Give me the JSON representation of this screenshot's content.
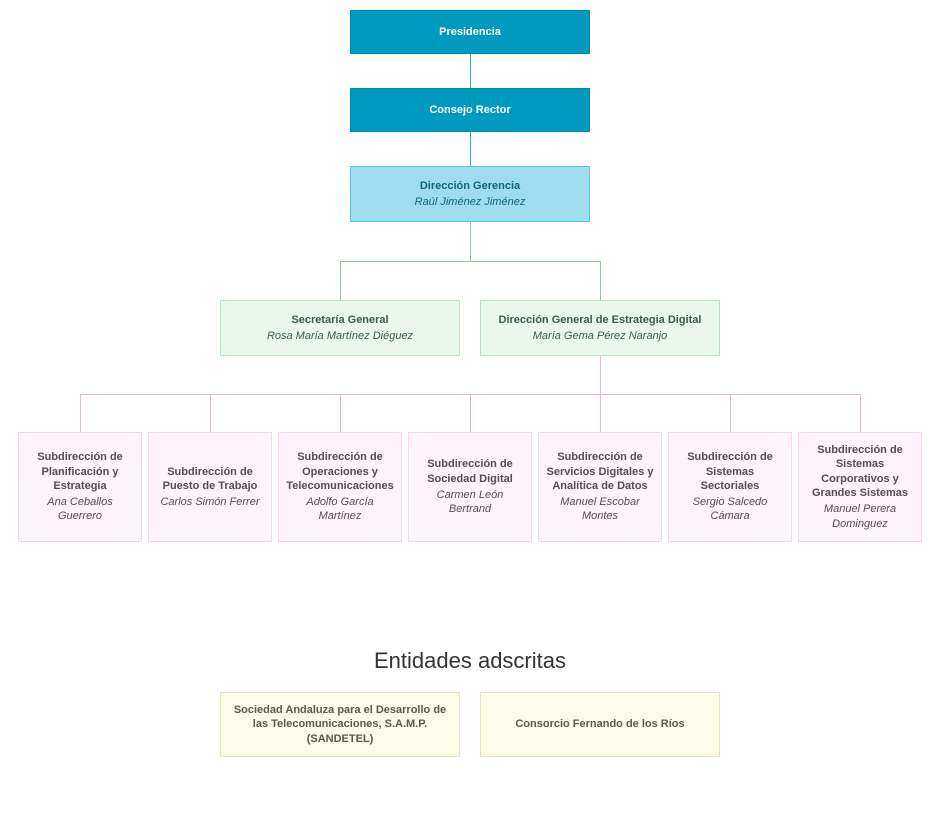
{
  "layout": {
    "topRowY": 10,
    "topNodeW": 240,
    "topNodeH": 44,
    "topNodeX": 350,
    "vGapTop": 34,
    "level3H": 56,
    "midRowY": 300,
    "midNodeW": 240,
    "midNodeH": 56,
    "midLeftX": 220,
    "midRightX": 480,
    "subRowY": 432,
    "subNodeW": 124,
    "subNodeH": 110,
    "subStartX": 18,
    "subGap": 130,
    "entidadesTop": 648
  },
  "colors": {
    "level1_bg": "#009ac1",
    "level1_border": "#0089ab",
    "level1_text": "#ffffff",
    "level3_bg": "#9fdcef",
    "level3_border": "#54c5e6",
    "level3_text": "#106480",
    "level4_bg": "#e9f7ec",
    "level4_border": "#b8e6c4",
    "level4_text": "#3a6045",
    "level5_bg": "#fcf4fa",
    "level5_border": "#f3d8ec",
    "level5_text": "#5a4a55",
    "conn_teal": "#2aa9c9",
    "conn_green": "#8fc9a0",
    "conn_pink": "#e9b6da",
    "entidad_bg": "#fbfbe7",
    "entidad_border": "#e6e6b8",
    "entidad_text": "#5a5a45",
    "heading_text": "#333333"
  },
  "nodes": {
    "presidencia": {
      "title": "Presidencia",
      "person": ""
    },
    "consejo": {
      "title": "Consejo Rector",
      "person": ""
    },
    "direccion_gerencia": {
      "title": "Dirección Gerencia",
      "person": "Raúl Jiménez Jiménez"
    },
    "secretaria_general": {
      "title": "Secretaría General",
      "person": "Rosa María Martínez Diéguez"
    },
    "dg_estrategia": {
      "title": "Dirección General de Estrategia Digital",
      "person": "María Gema Pérez Naranjo"
    }
  },
  "subdirecciones": [
    {
      "title": "Subdirección de Planificación y Estrategia",
      "person": "Ana Ceballos Guerrero"
    },
    {
      "title": "Subdirección de Puesto de Trabajo",
      "person": "Carlos Simón Ferrer"
    },
    {
      "title": "Subdirección de Operaciones y Telecomunicaciones",
      "person": "Adolfo García Martínez"
    },
    {
      "title": "Subdirección de Sociedad Digital",
      "person": "Carmen León Bertrand"
    },
    {
      "title": "Subdirección de Servicios Digitales y Analítica de Datos",
      "person": "Manuel Escobar Montes"
    },
    {
      "title": "Subdirección de Sistemas Sectoriales",
      "person": "Sergio Salcedo Cámara"
    },
    {
      "title": "Subdirección de Sistemas Corporativos y Grandes Sistemas",
      "person": "Manuel Perera Dominguez"
    }
  ],
  "entidades": {
    "heading": "Entidades adscritas",
    "items": [
      "Sociedad Andaluza para el Desarrollo de las Telecomunicaciones, S.A.M.P. (SANDETEL)",
      "Consorcio Fernando de los Ríos"
    ]
  }
}
